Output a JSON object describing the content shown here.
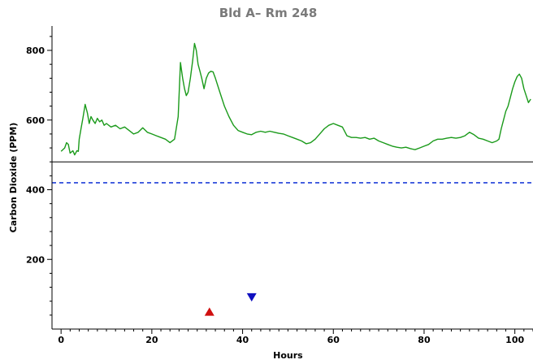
{
  "chart_data": {
    "type": "line",
    "title": "Bld A– Rm 248",
    "xlabel": "Hours",
    "ylabel": "Carbon Dioxide (PPM)",
    "xlim": [
      -2,
      104
    ],
    "ylim": [
      0,
      870
    ],
    "x_ticks": [
      0,
      20,
      40,
      60,
      80,
      100
    ],
    "y_ticks": [
      200,
      400,
      600,
      800
    ],
    "grid": false,
    "legend": "none",
    "series": [
      {
        "color": "#1a9a1a",
        "points": [
          [
            0,
            510
          ],
          [
            0.8,
            520
          ],
          [
            1.2,
            535
          ],
          [
            1.6,
            530
          ],
          [
            2,
            505
          ],
          [
            2.6,
            512
          ],
          [
            3,
            500
          ],
          [
            3.5,
            512
          ],
          [
            3.8,
            510
          ],
          [
            4,
            545
          ],
          [
            4.4,
            575
          ],
          [
            4.8,
            605
          ],
          [
            5.3,
            645
          ],
          [
            5.8,
            620
          ],
          [
            6.2,
            590
          ],
          [
            6.6,
            610
          ],
          [
            7,
            600
          ],
          [
            7.5,
            590
          ],
          [
            8,
            605
          ],
          [
            8.5,
            595
          ],
          [
            9,
            600
          ],
          [
            9.5,
            585
          ],
          [
            10,
            590
          ],
          [
            11,
            580
          ],
          [
            12,
            585
          ],
          [
            13,
            575
          ],
          [
            14,
            580
          ],
          [
            15,
            570
          ],
          [
            16,
            560
          ],
          [
            17,
            565
          ],
          [
            18,
            578
          ],
          [
            19,
            565
          ],
          [
            20,
            560
          ],
          [
            21,
            555
          ],
          [
            22,
            550
          ],
          [
            23,
            545
          ],
          [
            24,
            535
          ],
          [
            25,
            545
          ],
          [
            25.8,
            610
          ],
          [
            26.3,
            765
          ],
          [
            26.8,
            720
          ],
          [
            27.2,
            690
          ],
          [
            27.6,
            670
          ],
          [
            28,
            680
          ],
          [
            28.5,
            720
          ],
          [
            29,
            770
          ],
          [
            29.4,
            820
          ],
          [
            29.8,
            800
          ],
          [
            30.2,
            760
          ],
          [
            30.6,
            740
          ],
          [
            31,
            720
          ],
          [
            31.5,
            690
          ],
          [
            32,
            720
          ],
          [
            32.5,
            735
          ],
          [
            33,
            740
          ],
          [
            33.5,
            738
          ],
          [
            34,
            720
          ],
          [
            35,
            680
          ],
          [
            36,
            640
          ],
          [
            37,
            610
          ],
          [
            38,
            585
          ],
          [
            39,
            570
          ],
          [
            40,
            565
          ],
          [
            41,
            560
          ],
          [
            42,
            558
          ],
          [
            43,
            565
          ],
          [
            44,
            568
          ],
          [
            45,
            565
          ],
          [
            46,
            568
          ],
          [
            47,
            565
          ],
          [
            48,
            562
          ],
          [
            49,
            560
          ],
          [
            50,
            555
          ],
          [
            51,
            550
          ],
          [
            52,
            545
          ],
          [
            53,
            540
          ],
          [
            54,
            532
          ],
          [
            55,
            535
          ],
          [
            56,
            545
          ],
          [
            57,
            560
          ],
          [
            58,
            575
          ],
          [
            59,
            585
          ],
          [
            60,
            590
          ],
          [
            61,
            585
          ],
          [
            62,
            580
          ],
          [
            63,
            555
          ],
          [
            64,
            550
          ],
          [
            65,
            550
          ],
          [
            66,
            548
          ],
          [
            67,
            550
          ],
          [
            68,
            545
          ],
          [
            69,
            548
          ],
          [
            70,
            540
          ],
          [
            71,
            535
          ],
          [
            72,
            530
          ],
          [
            73,
            525
          ],
          [
            74,
            522
          ],
          [
            75,
            520
          ],
          [
            76,
            522
          ],
          [
            77,
            518
          ],
          [
            78,
            515
          ],
          [
            79,
            520
          ],
          [
            80,
            525
          ],
          [
            81,
            530
          ],
          [
            82,
            540
          ],
          [
            83,
            545
          ],
          [
            84,
            545
          ],
          [
            85,
            548
          ],
          [
            86,
            550
          ],
          [
            87,
            548
          ],
          [
            88,
            550
          ],
          [
            89,
            555
          ],
          [
            90,
            565
          ],
          [
            91,
            558
          ],
          [
            92,
            548
          ],
          [
            93,
            545
          ],
          [
            94,
            540
          ],
          [
            95,
            535
          ],
          [
            96,
            540
          ],
          [
            96.5,
            545
          ],
          [
            97,
            575
          ],
          [
            97.5,
            600
          ],
          [
            98,
            625
          ],
          [
            98.5,
            640
          ],
          [
            99,
            665
          ],
          [
            99.5,
            690
          ],
          [
            100,
            710
          ],
          [
            100.5,
            725
          ],
          [
            101,
            732
          ],
          [
            101.5,
            720
          ],
          [
            102,
            690
          ],
          [
            102.5,
            670
          ],
          [
            103,
            650
          ],
          [
            103.5,
            660
          ]
        ]
      }
    ],
    "reference_lines": [
      {
        "y": 480,
        "color": "#000000",
        "style": "solid"
      },
      {
        "y": 420,
        "color": "#1f3fd9",
        "style": "dashed"
      }
    ],
    "markers": [
      {
        "shape": "triangle-up",
        "x": 32.7,
        "y": 48,
        "color": "#d01010"
      },
      {
        "shape": "triangle-down",
        "x": 42,
        "y": 93,
        "color": "#1010c0"
      }
    ]
  }
}
